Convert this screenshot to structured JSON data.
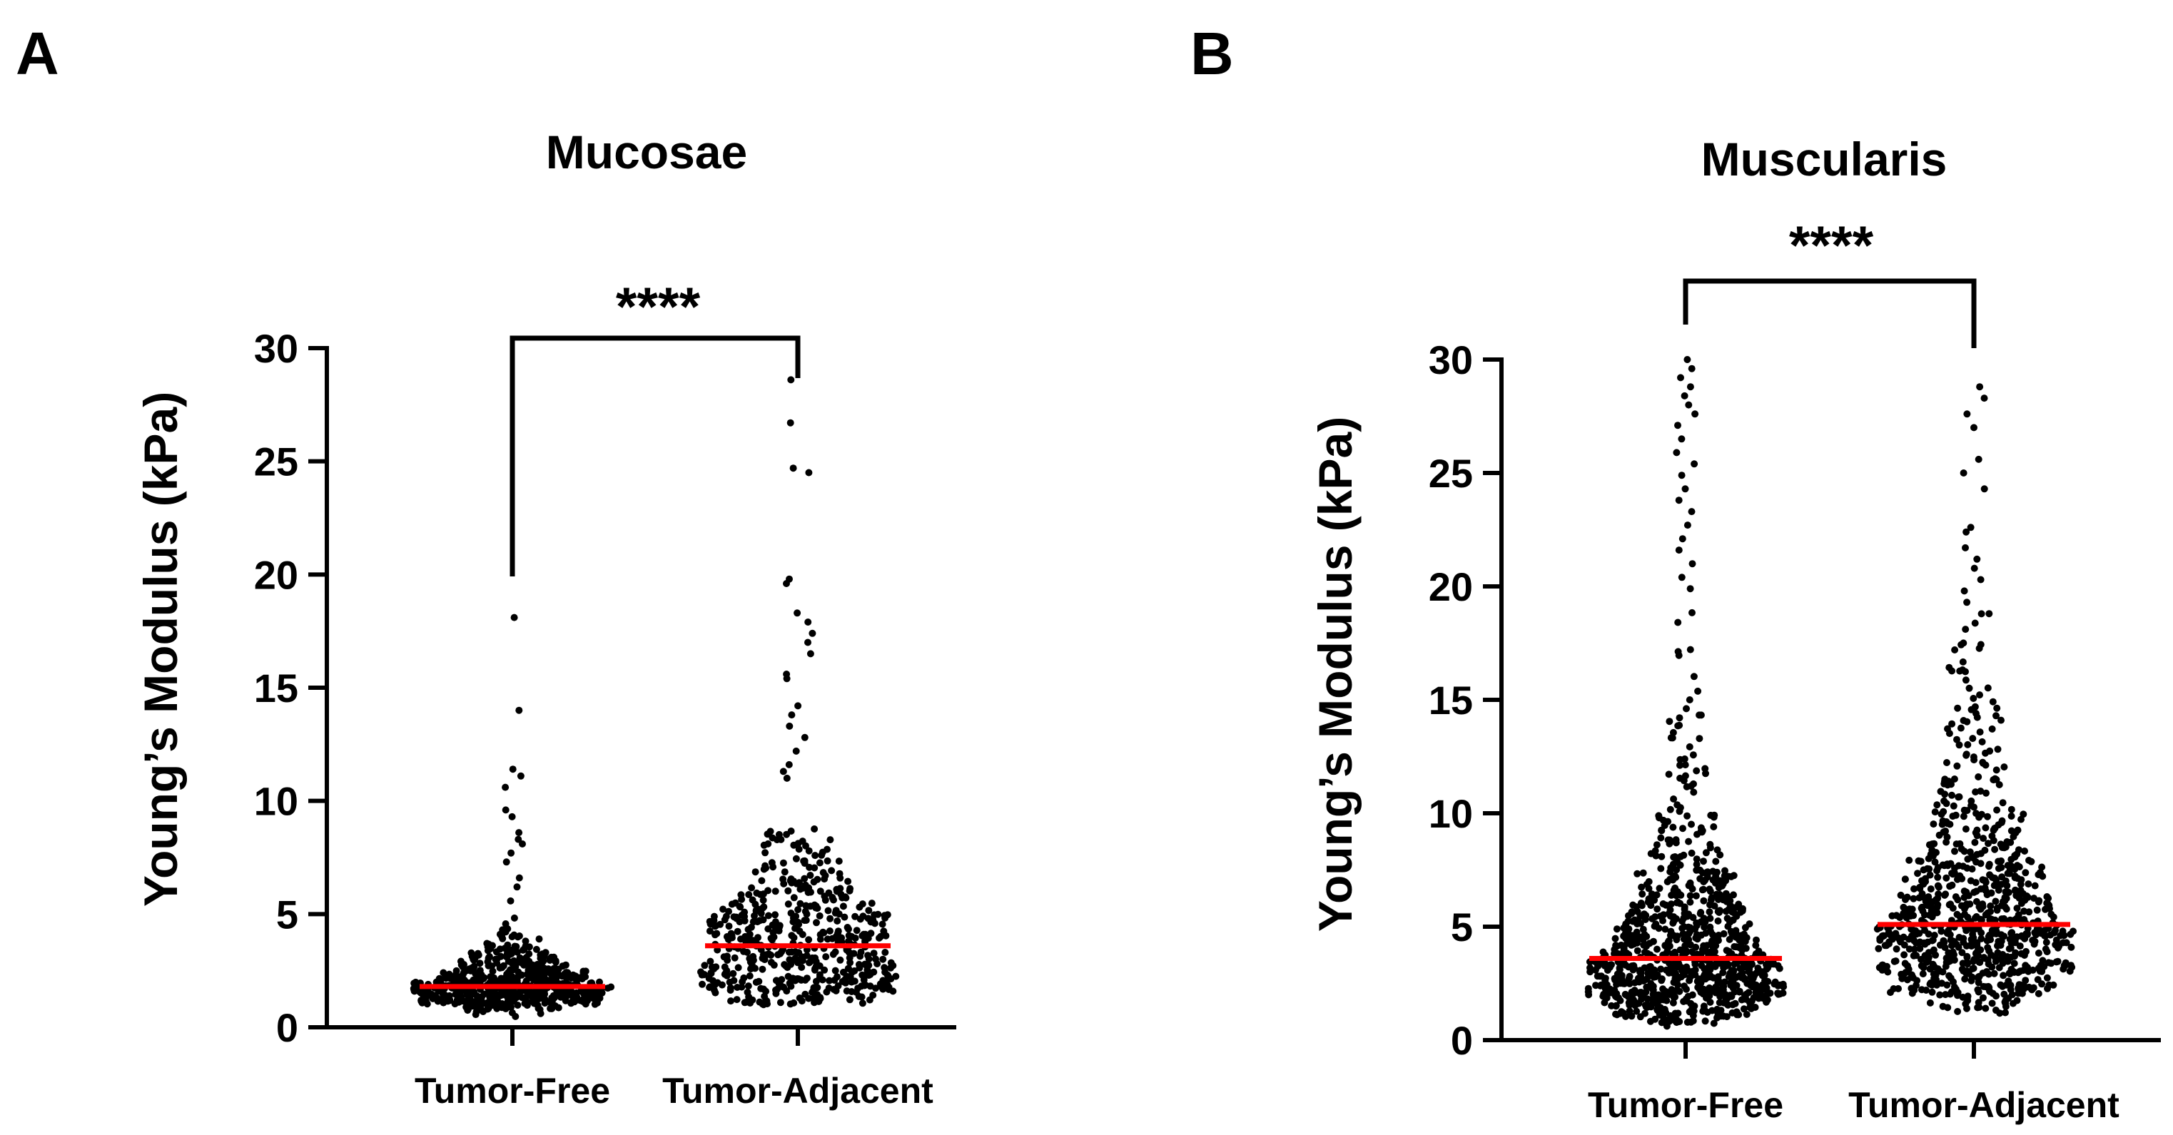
{
  "chart_data": [
    {
      "panel": "A",
      "type": "scatter",
      "title": "Mucosae",
      "ylabel": "Young’s Modulus (kPa)",
      "xlabel": "",
      "categories": [
        "Tumor-Free",
        "Tumor-Adjacent"
      ],
      "ylim": [
        0,
        30
      ],
      "yticks": [
        "0",
        "5",
        "10",
        "15",
        "20",
        "25",
        "30"
      ],
      "significance": "****",
      "grid": false,
      "median_color": "#ff0000",
      "point_color": "#000000",
      "series": [
        {
          "category": "Tumor-Free",
          "median": 1.8,
          "n": 600,
          "values_range": [
            0.4,
            20.0
          ],
          "outliers": [
            18.1,
            14.0,
            11.4,
            11.1,
            10.6,
            9.6,
            9.3,
            8.6,
            8.3,
            8.1,
            7.7,
            7.3,
            6.6,
            6.2
          ]
        },
        {
          "category": "Tumor-Adjacent",
          "median": 3.6,
          "n": 520,
          "values_range": [
            1.0,
            28.6
          ],
          "outliers": [
            28.6,
            26.7,
            24.7,
            24.5,
            19.8,
            19.6,
            18.3,
            17.9,
            17.4,
            17.0,
            16.5,
            15.6,
            15.4,
            14.2,
            13.8,
            13.3,
            12.8,
            12.2,
            11.6,
            11.3,
            11.0
          ]
        }
      ]
    },
    {
      "panel": "B",
      "type": "scatter",
      "title": "Muscularis",
      "ylabel": "Young’s Modulus (kPa)",
      "xlabel": "",
      "categories": [
        "Tumor-Free",
        "Tumor-Adjacent"
      ],
      "ylim": [
        0,
        30
      ],
      "yticks": [
        "0",
        "5",
        "10",
        "15",
        "20",
        "25",
        "30"
      ],
      "significance": "****",
      "grid": false,
      "median_color": "#ff0000",
      "point_color": "#000000",
      "series": [
        {
          "category": "Tumor-Free",
          "median": 3.6,
          "n": 900,
          "values_range": [
            0.6,
            30.0
          ],
          "outliers": [
            30.0,
            29.6,
            29.2,
            28.8,
            28.4,
            28.0,
            27.6,
            27.1,
            26.5,
            25.9,
            25.4,
            24.9,
            24.3,
            23.8,
            23.3,
            22.7,
            22.1,
            21.6,
            21.0,
            20.4,
            19.9
          ]
        },
        {
          "category": "Tumor-Adjacent",
          "median": 5.1,
          "n": 820,
          "values_range": [
            1.0,
            29.6
          ],
          "outliers": [
            28.8,
            28.3,
            27.6,
            27.0,
            25.6,
            25.0,
            24.3,
            22.6,
            22.4,
            21.7,
            21.2,
            20.8,
            20.3,
            19.8,
            19.3,
            18.8
          ]
        }
      ]
    }
  ]
}
